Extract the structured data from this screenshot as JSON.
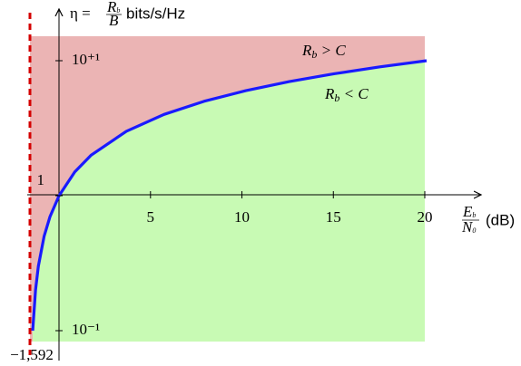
{
  "chart_data": {
    "type": "line",
    "y_label": {
      "prefix": "η =",
      "num": [
        "R",
        "b"
      ],
      "den": "B",
      "unit": "bits/s/Hz"
    },
    "x_label": {
      "num": [
        "E",
        "b"
      ],
      "den": [
        "N",
        "0"
      ],
      "unit": "(dB)"
    },
    "x": [
      -1.441,
      -1.287,
      -1.133,
      -0.818,
      -0.495,
      0,
      0.86,
      1.761,
      3.68,
      5.74,
      7.924,
      10.212,
      12.587,
      15.034,
      17.542,
      20.1
    ],
    "series": [
      {
        "color": "#1a1aff",
        "values": [
          0.1,
          0.2,
          0.3,
          0.5,
          0.7,
          1,
          1.5,
          2,
          3,
          4,
          5,
          6,
          7,
          8,
          9,
          10
        ]
      }
    ],
    "xlim": [
      -1.592,
      20
    ],
    "ylim": [
      0.1,
      10
    ],
    "log_y": true,
    "xticks": [
      5,
      10,
      15,
      20
    ],
    "yticks": [
      {
        "value": 0.1,
        "label": "10⁻¹"
      },
      1,
      {
        "value": 10,
        "label": "10⁺¹"
      }
    ],
    "shannon_limit": {
      "value": -1.592,
      "label": "−1,592",
      "color": "#d40000"
    },
    "regions": [
      {
        "label": [
          "R",
          "b",
          " > C"
        ],
        "color": "#ebb4b4"
      },
      {
        "label": [
          "R",
          "b",
          " < C"
        ],
        "color": "#c8fab4"
      }
    ],
    "grid": false
  }
}
